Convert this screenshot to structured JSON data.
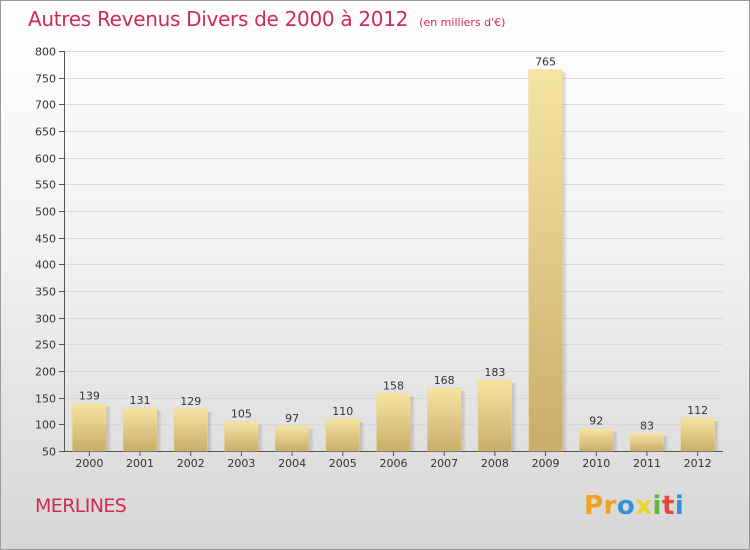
{
  "chart_data": {
    "type": "bar",
    "title": "Autres Revenus Divers de 2000 à 2012",
    "subtitle": "(en milliers d'€)",
    "categories": [
      "2000",
      "2001",
      "2002",
      "2003",
      "2004",
      "2005",
      "2006",
      "2007",
      "2008",
      "2009",
      "2010",
      "2011",
      "2012"
    ],
    "values": [
      139,
      131,
      129,
      105,
      97,
      110,
      158,
      168,
      183,
      765,
      92,
      83,
      112
    ],
    "ylim": [
      50,
      800
    ],
    "yticks": [
      50,
      100,
      150,
      200,
      250,
      300,
      350,
      400,
      450,
      500,
      550,
      600,
      650,
      700,
      750,
      800
    ],
    "grid": true,
    "bar_color": "#e7cf87",
    "grid_color": "#d9d9d9"
  },
  "footer": {
    "town": "MERLINES",
    "logo_letters": [
      "P",
      "r",
      "o",
      "x",
      "i",
      "t",
      "i"
    ],
    "logo_colors": [
      "#f0a11e",
      "#f0a11e",
      "#2f93d6",
      "#e8d52a",
      "#5fb43c",
      "#e24b3b",
      "#2f93d6"
    ]
  },
  "colors": {
    "accent": "#d12a55"
  }
}
